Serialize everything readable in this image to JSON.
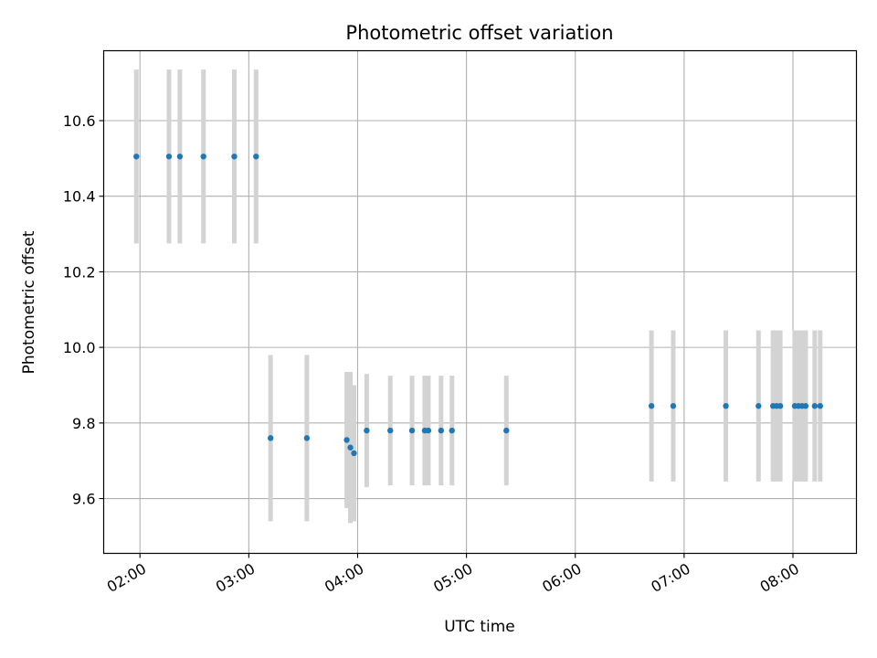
{
  "chart_data": {
    "type": "scatter",
    "title": "Photometric offset variation",
    "xlabel": "UTC time",
    "ylabel": "Photometric offset",
    "xlim": [
      "01:40",
      "08:35"
    ],
    "ylim": [
      9.455,
      10.785
    ],
    "x_ticks": [
      "02:00",
      "03:00",
      "04:00",
      "05:00",
      "06:00",
      "07:00",
      "08:00"
    ],
    "y_ticks": [
      "9.6",
      "9.8",
      "10.0",
      "10.2",
      "10.4",
      "10.6"
    ],
    "grid": true,
    "marker_color": "#1f77b4",
    "errorbar_color": "#d3d3d3",
    "points": [
      {
        "t": "01:58",
        "y": 10.505,
        "err": 0.23
      },
      {
        "t": "02:16",
        "y": 10.505,
        "err": 0.23
      },
      {
        "t": "02:22",
        "y": 10.505,
        "err": 0.23
      },
      {
        "t": "02:35",
        "y": 10.505,
        "err": 0.23
      },
      {
        "t": "02:52",
        "y": 10.505,
        "err": 0.23
      },
      {
        "t": "03:04",
        "y": 10.505,
        "err": 0.23
      },
      {
        "t": "03:12",
        "y": 9.76,
        "err": 0.22
      },
      {
        "t": "03:32",
        "y": 9.76,
        "err": 0.22
      },
      {
        "t": "03:54",
        "y": 9.755,
        "err": 0.18
      },
      {
        "t": "03:56",
        "y": 9.735,
        "err": 0.2
      },
      {
        "t": "03:58",
        "y": 9.72,
        "err": 0.18
      },
      {
        "t": "04:05",
        "y": 9.78,
        "err": 0.15
      },
      {
        "t": "04:18",
        "y": 9.78,
        "err": 0.145
      },
      {
        "t": "04:30",
        "y": 9.78,
        "err": 0.145
      },
      {
        "t": "04:37",
        "y": 9.78,
        "err": 0.145
      },
      {
        "t": "04:39",
        "y": 9.78,
        "err": 0.145
      },
      {
        "t": "04:46",
        "y": 9.78,
        "err": 0.145
      },
      {
        "t": "04:52",
        "y": 9.78,
        "err": 0.145
      },
      {
        "t": "05:22",
        "y": 9.78,
        "err": 0.145
      },
      {
        "t": "06:42",
        "y": 9.845,
        "err": 0.2
      },
      {
        "t": "06:54",
        "y": 9.845,
        "err": 0.2
      },
      {
        "t": "07:23",
        "y": 9.845,
        "err": 0.2
      },
      {
        "t": "07:41",
        "y": 9.845,
        "err": 0.2
      },
      {
        "t": "07:49",
        "y": 9.845,
        "err": 0.2
      },
      {
        "t": "07:51",
        "y": 9.845,
        "err": 0.2
      },
      {
        "t": "07:53",
        "y": 9.845,
        "err": 0.2
      },
      {
        "t": "08:01",
        "y": 9.845,
        "err": 0.2
      },
      {
        "t": "08:03",
        "y": 9.845,
        "err": 0.2
      },
      {
        "t": "08:05",
        "y": 9.845,
        "err": 0.2
      },
      {
        "t": "08:07",
        "y": 9.845,
        "err": 0.2
      },
      {
        "t": "08:12",
        "y": 9.845,
        "err": 0.2
      },
      {
        "t": "08:15",
        "y": 9.845,
        "err": 0.2
      }
    ]
  }
}
